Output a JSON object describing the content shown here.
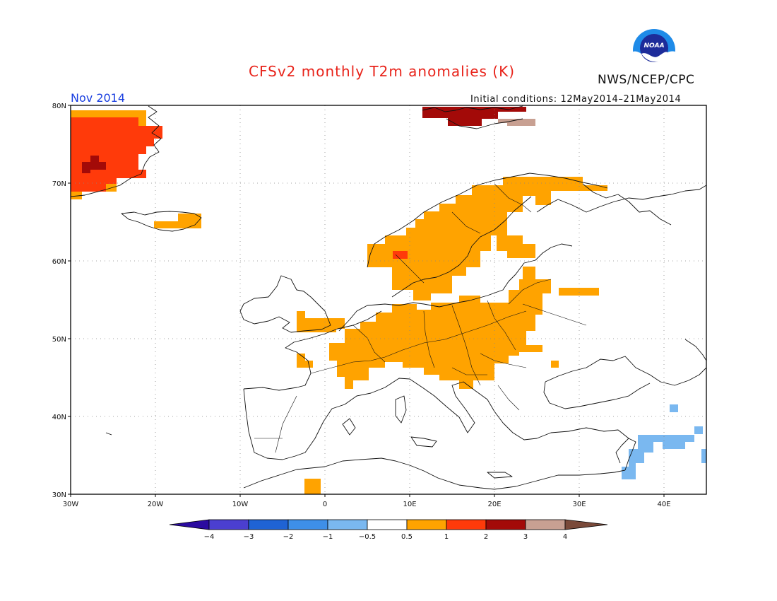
{
  "title": "CFSv2 monthly T2m anomalies (K)",
  "agency": "NWS/NCEP/CPC",
  "logo_text": "NOAA",
  "month": "Nov 2014",
  "initial_conditions": "Initial conditions: 12May2014–21May2014",
  "map": {
    "lon_range": [
      -30,
      45
    ],
    "lat_range": [
      30,
      80
    ],
    "lat_labels": [
      "30N",
      "40N",
      "50N",
      "60N",
      "70N",
      "80N"
    ],
    "lon_labels": [
      "30W",
      "20W",
      "10W",
      "0",
      "10E",
      "20E",
      "30E",
      "40E"
    ],
    "grid": true
  },
  "colorbar": {
    "labels": [
      "−4",
      "−3",
      "−2",
      "−1",
      "−0.5",
      "0.5",
      "1",
      "2",
      "3",
      "4"
    ],
    "colors": [
      "#2b0ba0",
      "#4b3fd0",
      "#1f63d4",
      "#3e8fe8",
      "#7ab8f0",
      "#ffffff",
      "#ffa300",
      "#ff3a0a",
      "#a30a08",
      "#c8a092",
      "#7a4a3a"
    ]
  },
  "anomaly_regions": [
    {
      "name": "Greenland east coast",
      "class": "1 to 2 K",
      "color": "#ff3a0a"
    },
    {
      "name": "Greenland local maximum",
      "class": "2 to 3 K",
      "color": "#a30a08"
    },
    {
      "name": "Svalbard",
      "class": "2 to 3 K",
      "color": "#a30a08"
    },
    {
      "name": "Svalbard east",
      "class": "3 to 4 K",
      "color": "#c8a092"
    },
    {
      "name": "Iceland",
      "class": "0.5 to 1 K",
      "color": "#ffa300"
    },
    {
      "name": "Scandinavia",
      "class": "0.5 to 1 K",
      "color": "#ffa300"
    },
    {
      "name": "Central and Eastern Europe",
      "class": "0.5 to 1 K",
      "color": "#ffa300"
    },
    {
      "name": "Norway local",
      "class": "1 to 2 K",
      "color": "#ff3a0a"
    },
    {
      "name": "Eastern Mediterranean / Middle East",
      "class": "−1 to −0.5 K",
      "color": "#7ab8f0"
    }
  ]
}
